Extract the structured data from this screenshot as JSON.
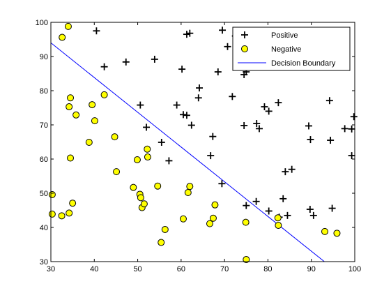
{
  "chart_data": {
    "type": "scatter",
    "title": "",
    "xlabel": "",
    "ylabel": "",
    "xlim": [
      30,
      100
    ],
    "ylim": [
      30,
      100
    ],
    "xticks": [
      30,
      40,
      50,
      60,
      70,
      80,
      90,
      100
    ],
    "yticks": [
      30,
      40,
      50,
      60,
      70,
      80,
      90,
      100
    ],
    "grid": false,
    "legend_position": "top-right",
    "colors": {
      "positive": "#000000",
      "negative_fill": "#ffff00",
      "negative_edge": "#000000",
      "boundary": "#0000ff"
    },
    "series": [
      {
        "name": "Positive",
        "marker": "plus",
        "points": [
          [
            40.5,
            97.5
          ],
          [
            61.3,
            96.5
          ],
          [
            62.0,
            96.8
          ],
          [
            69.5,
            97.7
          ],
          [
            72.5,
            96.0
          ],
          [
            47.3,
            88.4
          ],
          [
            42.3,
            87.0
          ],
          [
            53.9,
            89.2
          ],
          [
            60.2,
            86.3
          ],
          [
            70.7,
            92.9
          ],
          [
            68.5,
            85.5
          ],
          [
            74.5,
            84.7
          ],
          [
            75.0,
            85.5
          ],
          [
            64.2,
            80.8
          ],
          [
            64.0,
            77.9
          ],
          [
            71.8,
            78.3
          ],
          [
            82.4,
            76.5
          ],
          [
            79.2,
            75.3
          ],
          [
            80.2,
            74.0
          ],
          [
            50.6,
            75.8
          ],
          [
            59.0,
            75.8
          ],
          [
            60.5,
            73.0
          ],
          [
            61.3,
            72.8
          ],
          [
            52.0,
            69.3
          ],
          [
            62.4,
            69.9
          ],
          [
            74.5,
            69.8
          ],
          [
            77.4,
            70.4
          ],
          [
            78.0,
            68.9
          ],
          [
            89.4,
            69.7
          ],
          [
            94.2,
            77.1
          ],
          [
            97.7,
            68.9
          ],
          [
            99.3,
            68.8
          ],
          [
            99.8,
            72.4
          ],
          [
            55.5,
            64.9
          ],
          [
            57.2,
            59.5
          ],
          [
            67.3,
            66.6
          ],
          [
            66.8,
            61.0
          ],
          [
            89.8,
            65.7
          ],
          [
            94.4,
            65.5
          ],
          [
            99.3,
            61.0
          ],
          [
            69.4,
            52.8
          ],
          [
            84.0,
            56.3
          ],
          [
            85.5,
            57.0
          ],
          [
            77.3,
            47.6
          ],
          [
            75.0,
            46.4
          ],
          [
            83.5,
            48.4
          ],
          [
            80.2,
            44.8
          ],
          [
            84.5,
            43.5
          ],
          [
            89.7,
            45.3
          ],
          [
            90.5,
            43.5
          ],
          [
            94.8,
            45.6
          ],
          [
            82.6,
            43.0
          ]
        ]
      },
      {
        "name": "Negative",
        "marker": "circle",
        "points": [
          [
            34.0,
            98.8
          ],
          [
            32.6,
            95.6
          ],
          [
            42.3,
            78.8
          ],
          [
            34.5,
            77.9
          ],
          [
            34.2,
            75.3
          ],
          [
            35.8,
            72.9
          ],
          [
            39.5,
            75.9
          ],
          [
            40.1,
            71.2
          ],
          [
            38.8,
            64.9
          ],
          [
            44.7,
            66.5
          ],
          [
            34.5,
            60.3
          ],
          [
            45.1,
            56.3
          ],
          [
            30.3,
            49.6
          ],
          [
            49.0,
            51.7
          ],
          [
            50.5,
            49.7
          ],
          [
            50.7,
            48.7
          ],
          [
            54.6,
            52.1
          ],
          [
            52.2,
            62.9
          ],
          [
            52.3,
            60.6
          ],
          [
            49.9,
            59.8
          ],
          [
            62.0,
            52.0
          ],
          [
            61.6,
            50.2
          ],
          [
            51.0,
            45.8
          ],
          [
            51.5,
            46.9
          ],
          [
            35.0,
            47.1
          ],
          [
            34.2,
            44.2
          ],
          [
            32.5,
            43.4
          ],
          [
            30.3,
            43.9
          ],
          [
            67.8,
            46.6
          ],
          [
            67.4,
            42.7
          ],
          [
            66.6,
            41.1
          ],
          [
            60.5,
            42.5
          ],
          [
            56.3,
            39.4
          ],
          [
            55.4,
            35.6
          ],
          [
            74.9,
            41.5
          ],
          [
            82.3,
            42.8
          ],
          [
            82.4,
            40.6
          ],
          [
            93.1,
            38.8
          ],
          [
            95.9,
            38.3
          ],
          [
            75.0,
            30.6
          ]
        ]
      },
      {
        "name": "Decision Boundary",
        "marker": "line",
        "points": [
          [
            30.0,
            94.0
          ],
          [
            93.0,
            30.0
          ]
        ]
      }
    ]
  }
}
